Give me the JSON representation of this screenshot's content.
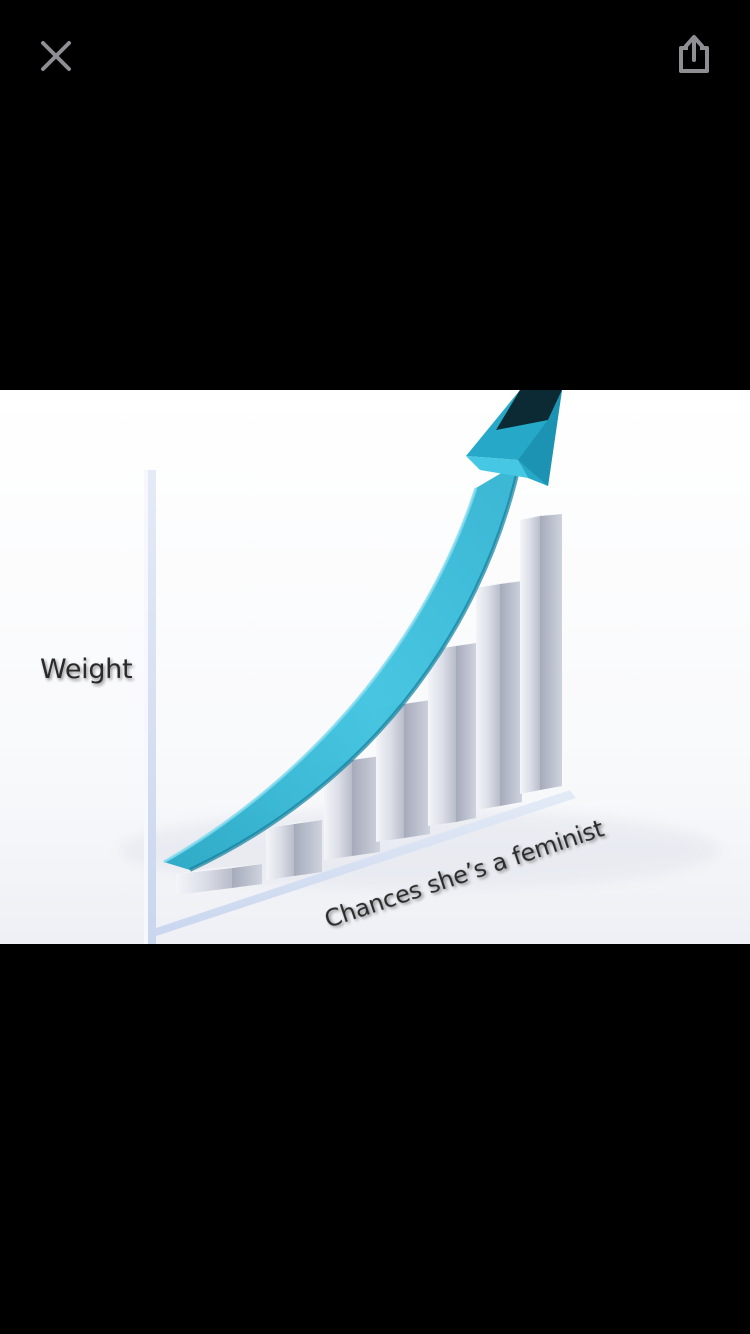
{
  "viewer": {
    "close_icon": "close-icon",
    "share_icon": "share-icon",
    "icon_color": "#8e8e93",
    "background": "#000000"
  },
  "image": {
    "y_axis_label": "Weight",
    "x_axis_label": "Chances she’s a feminist",
    "arrow_color": "#2eb8d6",
    "bar_color": "#e6e8f0",
    "bar_count": 7,
    "trend": "increasing"
  }
}
